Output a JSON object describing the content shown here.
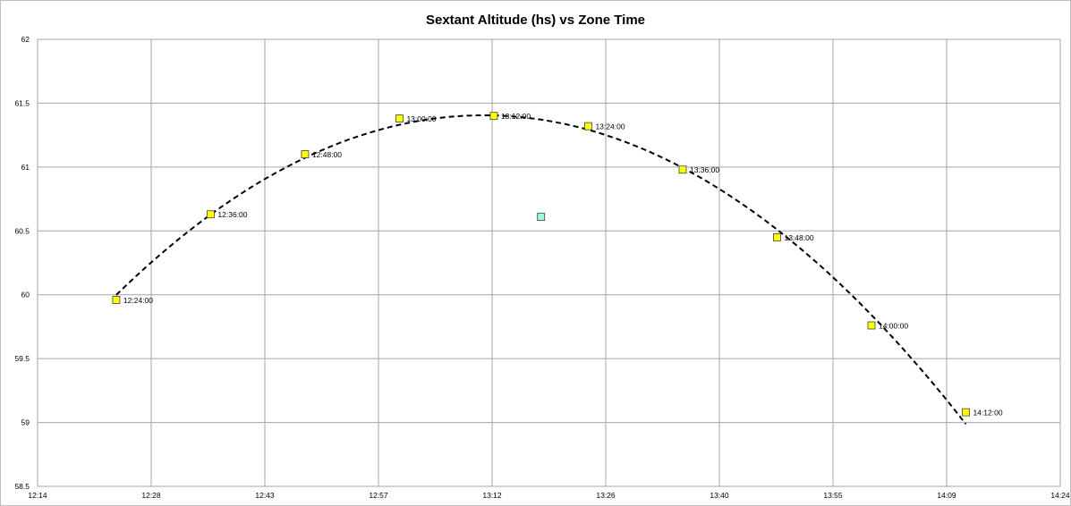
{
  "chart_data": {
    "type": "scatter",
    "title": "Sextant Altitude (hs)  vs  Zone Time",
    "xlabel": "",
    "ylabel": "",
    "xlim": [
      "12:14",
      "14:24"
    ],
    "ylim": [
      58.5,
      62
    ],
    "x_ticks": [
      "12:14",
      "12:28",
      "12:43",
      "12:57",
      "13:12",
      "13:26",
      "13:40",
      "13:55",
      "14:09",
      "14:24"
    ],
    "y_ticks": [
      58.5,
      59,
      59.5,
      60,
      60.5,
      61,
      61.5,
      62
    ],
    "grid": true,
    "colors": {
      "points": "#ffff00",
      "outlier": "#99ffcc",
      "trendline": "#000000",
      "gridline": "#a6a6a6"
    },
    "series": [
      {
        "points": [
          {
            "x": "12:24:00",
            "y": 59.96,
            "label": "12:24:00"
          },
          {
            "x": "12:36:00",
            "y": 60.63,
            "label": "12:36:00"
          },
          {
            "x": "12:48:00",
            "y": 61.1,
            "label": "12:48:00"
          },
          {
            "x": "13:00:00",
            "y": 61.38,
            "label": "13:00:00"
          },
          {
            "x": "13:12:00",
            "y": 61.4,
            "label": "13:12:00"
          },
          {
            "x": "13:24:00",
            "y": 61.32,
            "label": "13:24:00"
          },
          {
            "x": "13:36:00",
            "y": 60.98,
            "label": "13:36:00"
          },
          {
            "x": "13:48:00",
            "y": 60.45,
            "label": "13:48:00"
          },
          {
            "x": "14:00:00",
            "y": 59.76,
            "label": "14:00:00"
          },
          {
            "x": "14:12:00",
            "y": 59.08,
            "label": "14:12:00"
          }
        ]
      },
      {
        "points": [
          {
            "x": "13:18:00",
            "y": 60.61
          }
        ]
      }
    ],
    "trendline": {
      "style": "dashed",
      "x_start": "12:24:00",
      "x_end": "14:12:00"
    }
  }
}
